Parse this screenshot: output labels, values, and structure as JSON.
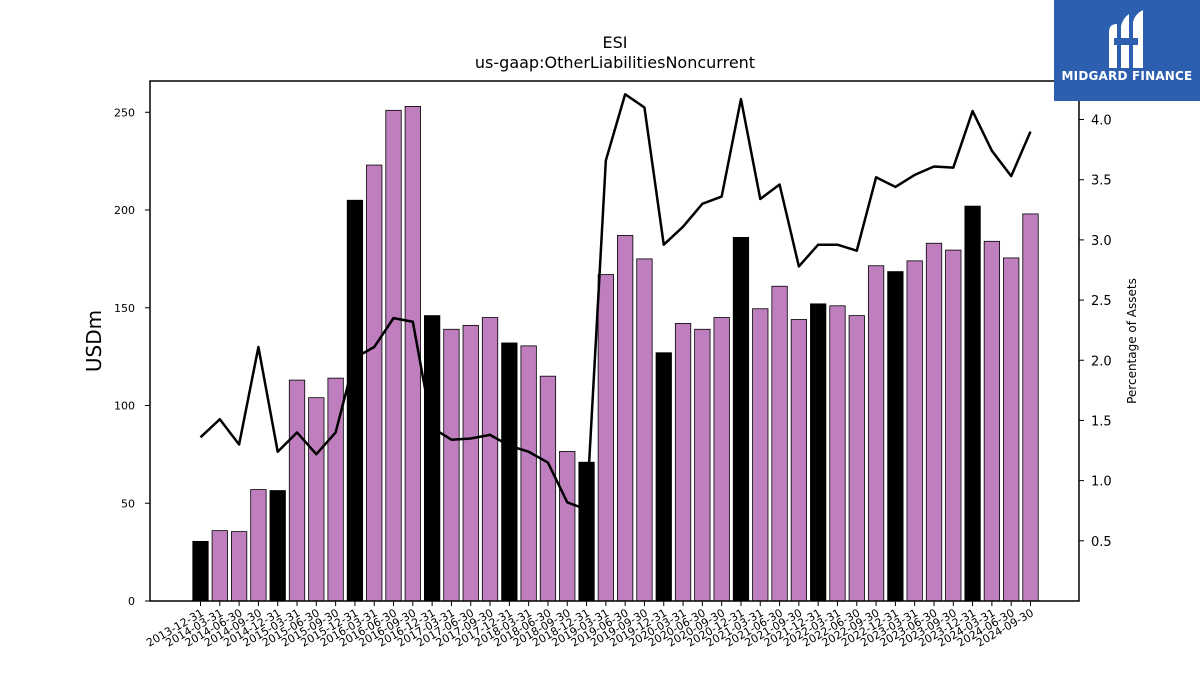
{
  "chart_data": {
    "type": "bar",
    "title": "ESI",
    "subtitle": "us-gaap:OtherLiabilitiesNoncurrent",
    "ylabel": "USDm",
    "y2label": "Percentage of Assets",
    "ylim": [
      0,
      266
    ],
    "y2lim": [
      0.0,
      4.32
    ],
    "yticks": [
      0,
      50,
      100,
      150,
      200,
      250
    ],
    "y2ticks": [
      0.5,
      1.0,
      1.5,
      2.0,
      2.5,
      3.0,
      3.5,
      4.0
    ],
    "grid": false,
    "colors": {
      "bar_default": "#bf7fbf",
      "bar_highlight": "#000000",
      "line": "#000000"
    },
    "categories": [
      "2013-12-31",
      "2014-03-31",
      "2014-06-30",
      "2014-09-30",
      "2014-12-31",
      "2015-03-31",
      "2015-06-30",
      "2015-09-30",
      "2015-12-31",
      "2016-03-31",
      "2016-06-30",
      "2016-09-30",
      "2016-12-31",
      "2017-03-31",
      "2017-06-30",
      "2017-09-30",
      "2017-12-31",
      "2018-03-31",
      "2018-06-30",
      "2018-09-30",
      "2018-12-31",
      "2019-03-31",
      "2019-06-30",
      "2019-09-30",
      "2019-12-31",
      "2020-03-31",
      "2020-06-30",
      "2020-09-30",
      "2020-12-31",
      "2021-03-31",
      "2021-06-30",
      "2021-09-30",
      "2021-12-31",
      "2022-03-31",
      "2022-06-30",
      "2022-09-30",
      "2022-12-31",
      "2023-03-31",
      "2023-06-30",
      "2023-09-30",
      "2023-12-31",
      "2024-03-31",
      "2024-06-30",
      "2024-09-30"
    ],
    "values": [
      30.5,
      36,
      35.5,
      57,
      56.5,
      113,
      104,
      114,
      205,
      223,
      251,
      253,
      146,
      139,
      141,
      145,
      132,
      130.5,
      115,
      76.5,
      71,
      167,
      187,
      175,
      127,
      142,
      139,
      145,
      186,
      149.5,
      161,
      144,
      152,
      151,
      146,
      171.5,
      168.5,
      174,
      183,
      179.5,
      202,
      184,
      175.5,
      198
    ],
    "highlight": [
      true,
      false,
      false,
      false,
      true,
      false,
      false,
      false,
      true,
      false,
      false,
      false,
      true,
      false,
      false,
      false,
      true,
      false,
      false,
      false,
      true,
      false,
      false,
      false,
      true,
      false,
      false,
      false,
      true,
      false,
      false,
      false,
      true,
      false,
      false,
      false,
      true,
      false,
      false,
      false,
      true,
      false,
      false,
      false
    ],
    "line_values": [
      1.36,
      1.51,
      1.3,
      2.11,
      1.24,
      1.4,
      1.22,
      1.4,
      2.02,
      2.11,
      2.35,
      2.32,
      1.44,
      1.34,
      1.35,
      1.38,
      1.29,
      1.24,
      1.15,
      0.82,
      0.76,
      3.66,
      4.21,
      4.1,
      2.96,
      3.11,
      3.3,
      3.36,
      4.17,
      3.34,
      3.46,
      2.78,
      2.96,
      2.96,
      2.91,
      3.52,
      3.44,
      3.54,
      3.61,
      3.6,
      4.07,
      3.74,
      3.53,
      3.9
    ]
  },
  "logo": {
    "text": "MIDGARD FINANCE",
    "icon": "midgard-logo-icon"
  }
}
